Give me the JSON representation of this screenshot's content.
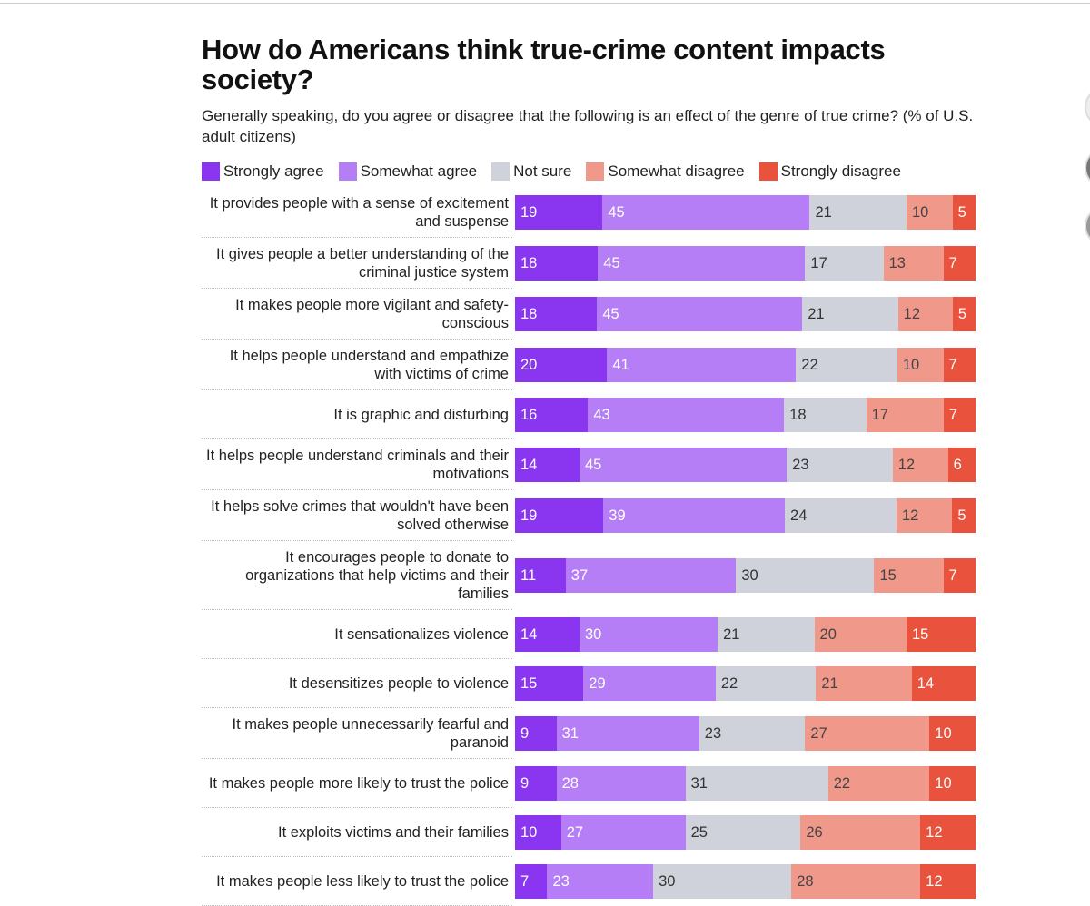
{
  "chart_data": {
    "type": "bar",
    "orientation": "horizontal",
    "stacked": true,
    "title": "How do Americans think true-crime content impacts society?",
    "subtitle": "Generally speaking, do you agree or disagree that the following is an effect of the genre of true crime? (% of U.S. adult citizens)",
    "categories": [
      "It provides people with a sense of excitement and suspense",
      "It gives people a better understanding of the criminal justice system",
      "It makes people more vigilant and safety-conscious",
      "It helps people understand and empathize with victims of crime",
      "It is graphic and disturbing",
      "It helps people understand criminals and their motivations",
      "It helps solve crimes that wouldn't have been solved otherwise",
      "It encourages people to donate to organizations that help victims and their families",
      "It sensationalizes violence",
      "It desensitizes people to violence",
      "It makes people unnecessarily fearful and paranoid",
      "It makes people more likely to trust the police",
      "It exploits victims and their families",
      "It makes people less likely to trust the police"
    ],
    "series": [
      {
        "name": "Strongly agree",
        "color": "#8a35f0",
        "values": [
          19,
          18,
          18,
          20,
          16,
          14,
          19,
          11,
          14,
          15,
          9,
          9,
          10,
          7
        ]
      },
      {
        "name": "Somewhat agree",
        "color": "#b57ef6",
        "values": [
          45,
          45,
          45,
          41,
          43,
          45,
          39,
          37,
          30,
          29,
          31,
          28,
          27,
          23
        ]
      },
      {
        "name": "Not sure",
        "color": "#cfd2da",
        "values": [
          21,
          17,
          21,
          22,
          18,
          23,
          24,
          30,
          21,
          22,
          23,
          31,
          25,
          30
        ]
      },
      {
        "name": "Somewhat disagree",
        "color": "#f0988a",
        "values": [
          10,
          13,
          12,
          10,
          17,
          12,
          12,
          15,
          20,
          21,
          27,
          22,
          26,
          28
        ]
      },
      {
        "name": "Strongly disagree",
        "color": "#e9523d",
        "values": [
          5,
          7,
          5,
          7,
          7,
          6,
          5,
          7,
          15,
          14,
          10,
          10,
          12,
          12
        ]
      }
    ]
  }
}
